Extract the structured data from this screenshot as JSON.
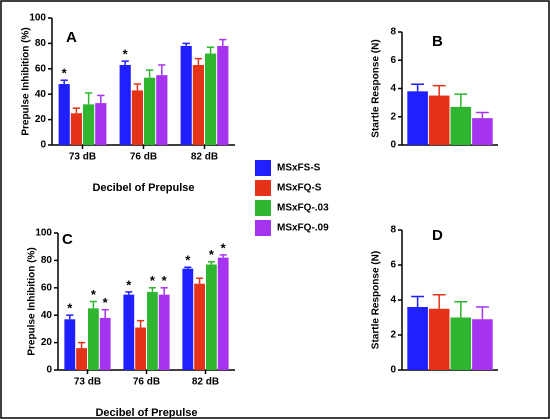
{
  "legend": [
    {
      "name": "MSxFS-S",
      "color": "#1f1fff"
    },
    {
      "name": "MSxFQ-S",
      "color": "#e5331a"
    },
    {
      "name": "MSxFQ-.03",
      "color": "#2fb52f"
    },
    {
      "name": "MSxFQ-.09",
      "color": "#a633f0"
    }
  ],
  "chart_data": [
    {
      "type": "bar",
      "panel": "A",
      "ylabel": "Prepulse Inhibition (%)",
      "xlabel": "Decibel of Prepulse",
      "categories": [
        "73 dB",
        "76 dB",
        "82 dB"
      ],
      "series": [
        {
          "values": [
            48,
            63,
            78
          ],
          "errors": [
            3,
            3,
            2
          ],
          "marks": [
            "*",
            "*",
            null
          ]
        },
        {
          "values": [
            25,
            43,
            63
          ],
          "errors": [
            4,
            5,
            5
          ],
          "marks": [
            null,
            null,
            null
          ]
        },
        {
          "values": [
            32,
            53,
            72
          ],
          "errors": [
            9,
            6,
            5
          ],
          "marks": [
            null,
            null,
            null
          ]
        },
        {
          "values": [
            33,
            55,
            78
          ],
          "errors": [
            6,
            8,
            5
          ],
          "marks": [
            null,
            null,
            null
          ]
        }
      ],
      "ylim": [
        0,
        100
      ],
      "yticks": [
        0,
        20,
        40,
        60,
        80,
        100
      ]
    },
    {
      "type": "bar",
      "panel": "B",
      "ylabel": "Startle Response (N)",
      "categories": [
        null
      ],
      "series": [
        {
          "values": [
            3.8
          ],
          "errors": [
            0.5
          ],
          "marks": [
            null
          ]
        },
        {
          "values": [
            3.5
          ],
          "errors": [
            0.7
          ],
          "marks": [
            null
          ]
        },
        {
          "values": [
            2.7
          ],
          "errors": [
            0.9
          ],
          "marks": [
            null
          ]
        },
        {
          "values": [
            1.9
          ],
          "errors": [
            0.4
          ],
          "marks": [
            null
          ]
        }
      ],
      "ylim": [
        0,
        8
      ],
      "yticks": [
        0,
        2,
        4,
        6,
        8
      ]
    },
    {
      "type": "bar",
      "panel": "C",
      "ylabel": "Prepulse Inhibition (%)",
      "xlabel": "Decibel of Prepulse",
      "categories": [
        "73 dB",
        "76 dB",
        "82 dB"
      ],
      "series": [
        {
          "values": [
            37,
            55,
            74
          ],
          "errors": [
            3,
            2,
            1
          ],
          "marks": [
            "*",
            "*",
            "*"
          ]
        },
        {
          "values": [
            16,
            31,
            63
          ],
          "errors": [
            4,
            5,
            4
          ],
          "marks": [
            null,
            null,
            null
          ]
        },
        {
          "values": [
            45,
            57,
            77
          ],
          "errors": [
            5,
            3,
            2
          ],
          "marks": [
            "*",
            "*",
            "*"
          ]
        },
        {
          "values": [
            38,
            55,
            82
          ],
          "errors": [
            6,
            5,
            2
          ],
          "marks": [
            "*",
            "*",
            "*"
          ]
        }
      ],
      "ylim": [
        0,
        100
      ],
      "yticks": [
        0,
        20,
        40,
        60,
        80,
        100
      ]
    },
    {
      "type": "bar",
      "panel": "D",
      "ylabel": "Startle Response (N)",
      "categories": [
        null
      ],
      "series": [
        {
          "values": [
            3.6
          ],
          "errors": [
            0.6
          ],
          "marks": [
            null
          ]
        },
        {
          "values": [
            3.5
          ],
          "errors": [
            0.8
          ],
          "marks": [
            null
          ]
        },
        {
          "values": [
            3.0
          ],
          "errors": [
            0.9
          ],
          "marks": [
            null
          ]
        },
        {
          "values": [
            2.9
          ],
          "errors": [
            0.7
          ],
          "marks": [
            null
          ]
        }
      ],
      "ylim": [
        0,
        8
      ],
      "yticks": [
        0,
        2,
        4,
        6,
        8
      ]
    }
  ]
}
